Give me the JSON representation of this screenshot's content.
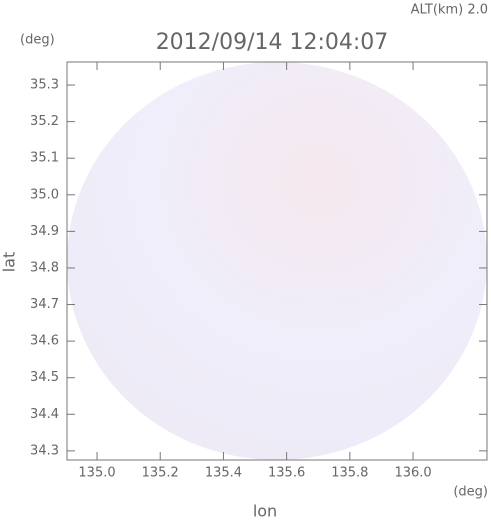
{
  "chart_data": {
    "type": "radar-map",
    "title": "2012/09/14 12:04:07",
    "annotation": "ALT(km) 2.0",
    "xlabel": "lon",
    "ylabel": "lat",
    "xunit": "(deg)",
    "yunit": "(deg)",
    "xlim": [
      134.905,
      136.234
    ],
    "ylim": [
      34.275,
      35.363
    ],
    "xticks": [
      {
        "value": 135,
        "label": "135.0"
      },
      135.2,
      135.4,
      135.6,
      135.8,
      {
        "value": 136,
        "label": "136.0"
      }
    ],
    "yticks": [
      34.3,
      34.4,
      34.5,
      34.6,
      34.7,
      34.8,
      34.9,
      {
        "value": 35,
        "label": "35.0"
      },
      35.1,
      35.2,
      35.3
    ]
  }
}
